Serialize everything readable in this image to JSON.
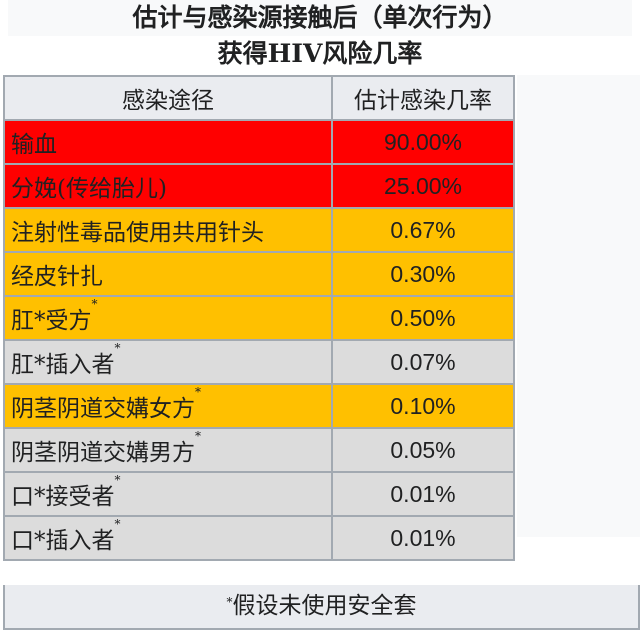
{
  "caption": {
    "line1": "估计与感染源接触后（单次行为）",
    "line2": "获得HIV风险几率"
  },
  "headers": [
    "感染途径",
    "估计感染几率"
  ],
  "colors": {
    "high": "#ff0000",
    "medium": "#ffc000",
    "low": "#dcdcdc",
    "header": "#eaecf0",
    "border": "#a2a9b1"
  },
  "rows": [
    {
      "route": "输血",
      "rate": "90.00%",
      "note": "",
      "level": "high"
    },
    {
      "route": "分娩(传给胎儿)",
      "rate": "25.00%",
      "note": "",
      "level": "high"
    },
    {
      "route": "注射性毒品使用共用针头",
      "rate": "0.67%",
      "note": "",
      "level": "medium"
    },
    {
      "route": "经皮针扎",
      "rate": "0.30%",
      "note": "",
      "level": "medium"
    },
    {
      "route": "肛*受方",
      "rate": "0.50%",
      "note": "*",
      "level": "medium"
    },
    {
      "route": "肛*插入者",
      "rate": "0.07%",
      "note": "*",
      "level": "low"
    },
    {
      "route": "阴茎阴道交媾女方",
      "rate": "0.10%",
      "note": "*",
      "level": "medium"
    },
    {
      "route": "阴茎阴道交媾男方",
      "rate": "0.05%",
      "note": "*",
      "level": "low"
    },
    {
      "route": "口*接受者",
      "rate": "0.01%",
      "note": "*",
      "level": "low"
    },
    {
      "route": "口*插入者",
      "rate": "0.01%",
      "note": "*",
      "level": "low"
    }
  ],
  "footer": {
    "mark": "*",
    "text": "假设未使用安全套"
  }
}
